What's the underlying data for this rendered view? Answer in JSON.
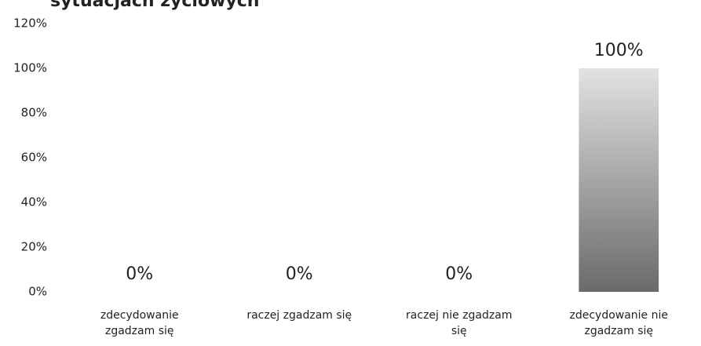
{
  "chart_data": {
    "type": "bar",
    "title": "sytuacjach życiowych",
    "categories": [
      "zdecydowanie zgadzam się",
      "raczej zgadzam się",
      "raczej nie zgadzam się",
      "zdecydowanie nie zgadzam się"
    ],
    "values": [
      0,
      0,
      0,
      100
    ],
    "value_labels": [
      "0%",
      "0%",
      "0%",
      "100%"
    ],
    "ylim": [
      0,
      120
    ],
    "yticks": [
      {
        "value": 0,
        "label": "0%"
      },
      {
        "value": 20,
        "label": "20%"
      },
      {
        "value": 40,
        "label": "40%"
      },
      {
        "value": 60,
        "label": "60%"
      },
      {
        "value": 80,
        "label": "80%"
      },
      {
        "value": 100,
        "label": "100%"
      },
      {
        "value": 120,
        "label": "120%"
      }
    ],
    "grid": false
  }
}
